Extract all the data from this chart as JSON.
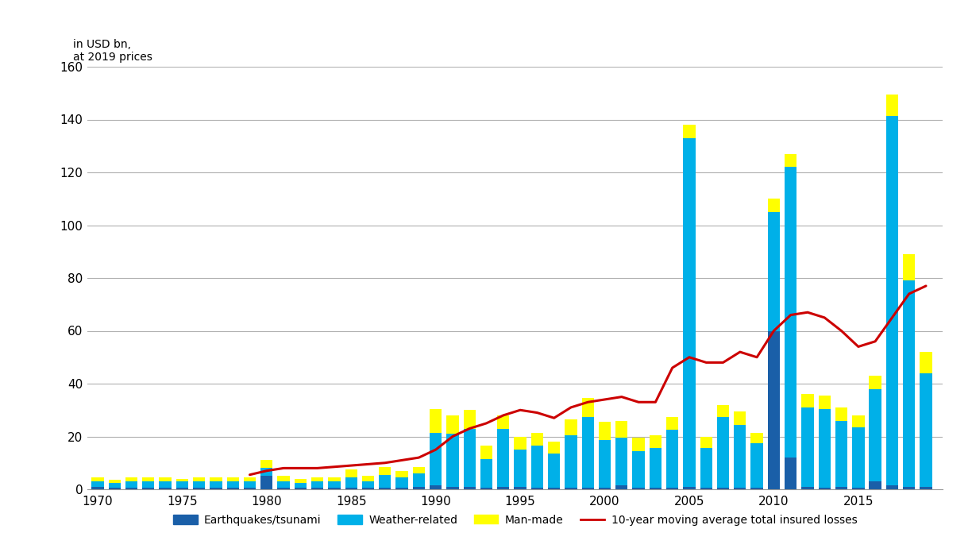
{
  "years": [
    1970,
    1971,
    1972,
    1973,
    1974,
    1975,
    1976,
    1977,
    1978,
    1979,
    1980,
    1981,
    1982,
    1983,
    1984,
    1985,
    1986,
    1987,
    1988,
    1989,
    1990,
    1991,
    1992,
    1993,
    1994,
    1995,
    1996,
    1997,
    1998,
    1999,
    2000,
    2001,
    2002,
    2003,
    2004,
    2005,
    2006,
    2007,
    2008,
    2009,
    2010,
    2011,
    2012,
    2013,
    2014,
    2015,
    2016,
    2017,
    2018,
    2019
  ],
  "earthquake": [
    1.0,
    0.5,
    0.5,
    0.5,
    0.5,
    0.5,
    0.5,
    0.5,
    0.5,
    0.5,
    5.0,
    0.5,
    0.5,
    0.5,
    0.5,
    0.5,
    0.5,
    0.5,
    0.5,
    1.0,
    1.5,
    1.0,
    1.0,
    0.5,
    1.0,
    1.0,
    0.5,
    0.5,
    0.5,
    0.5,
    0.5,
    1.5,
    0.5,
    0.5,
    0.5,
    1.0,
    0.5,
    0.5,
    0.5,
    0.5,
    60.0,
    12.0,
    1.0,
    0.5,
    1.0,
    0.5,
    3.0,
    1.5,
    1.0,
    1.0
  ],
  "weather": [
    2.0,
    2.0,
    2.5,
    2.5,
    2.5,
    2.5,
    2.5,
    2.5,
    2.5,
    2.5,
    3.0,
    2.5,
    2.0,
    2.5,
    2.5,
    4.0,
    2.5,
    5.0,
    4.0,
    5.0,
    20.0,
    20.0,
    22.0,
    11.0,
    22.0,
    14.0,
    16.0,
    13.0,
    20.0,
    27.0,
    18.0,
    18.0,
    14.0,
    15.0,
    22.0,
    132.0,
    15.0,
    27.0,
    24.0,
    17.0,
    45.0,
    110.0,
    30.0,
    30.0,
    25.0,
    23.0,
    35.0,
    140.0,
    78.0,
    43.0
  ],
  "manmade": [
    1.5,
    1.0,
    1.5,
    1.5,
    1.5,
    1.0,
    1.5,
    1.5,
    1.5,
    1.5,
    3.0,
    2.0,
    1.5,
    1.5,
    1.5,
    3.0,
    2.0,
    3.0,
    2.5,
    2.5,
    9.0,
    7.0,
    7.0,
    5.0,
    5.0,
    5.0,
    5.0,
    4.5,
    6.0,
    7.0,
    7.0,
    6.5,
    5.0,
    5.0,
    5.0,
    5.0,
    4.5,
    4.5,
    5.0,
    4.0,
    5.0,
    5.0,
    5.0,
    5.0,
    5.0,
    4.5,
    5.0,
    8.0,
    10.0,
    8.0
  ],
  "moving_avg_years": [
    1979,
    1980,
    1981,
    1982,
    1983,
    1984,
    1985,
    1986,
    1987,
    1988,
    1989,
    1990,
    1991,
    1992,
    1993,
    1994,
    1995,
    1996,
    1997,
    1998,
    1999,
    2000,
    2001,
    2002,
    2003,
    2004,
    2005,
    2006,
    2007,
    2008,
    2009,
    2010,
    2011,
    2012,
    2013,
    2014,
    2015,
    2016,
    2017,
    2018,
    2019
  ],
  "moving_avg_values": [
    5.5,
    7.0,
    8.0,
    8.0,
    8.0,
    8.5,
    9.0,
    9.5,
    10.0,
    11.0,
    12.0,
    15.0,
    20.0,
    23.0,
    25.0,
    28.0,
    30.0,
    29.0,
    27.0,
    31.0,
    33.0,
    34.0,
    35.0,
    33.0,
    33.0,
    46.0,
    50.0,
    48.0,
    48.0,
    52.0,
    50.0,
    60.0,
    66.0,
    67.0,
    65.0,
    60.0,
    54.0,
    56.0,
    65.0,
    74.0,
    77.0
  ],
  "color_earthquake": "#1a5fa8",
  "color_weather": "#00b0e8",
  "color_manmade": "#ffff00",
  "color_moving_avg": "#cc0000",
  "ylabel": "in USD bn,\nat 2019 prices",
  "ylim": [
    0,
    160
  ],
  "yticks": [
    0,
    20,
    40,
    60,
    80,
    100,
    120,
    140,
    160
  ],
  "xticks": [
    1970,
    1975,
    1980,
    1985,
    1990,
    1995,
    2000,
    2005,
    2010,
    2015
  ],
  "legend_labels": [
    "Earthquakes/tsunami",
    "Weather-related",
    "Man-made",
    "10-year moving average total insured losses"
  ],
  "background_color": "#ffffff",
  "grid_color": "#b0b0b0"
}
